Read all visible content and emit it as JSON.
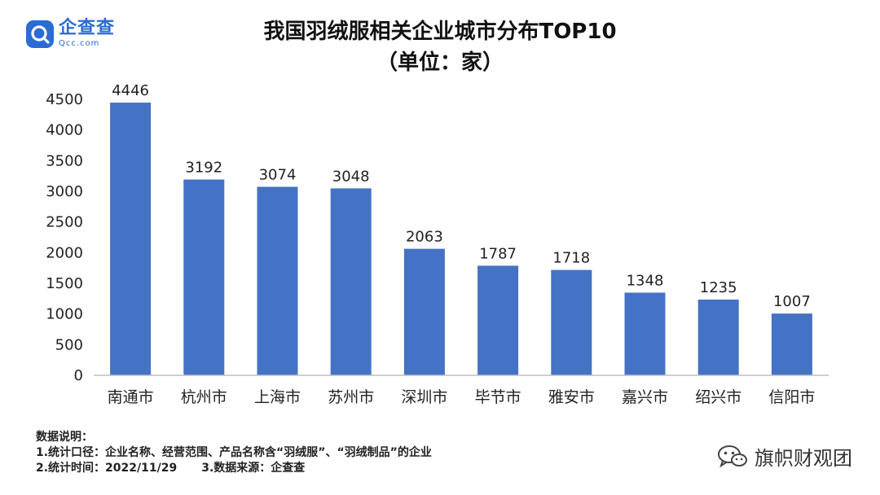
{
  "logo": {
    "cn": "企查查",
    "en": "Qcc.com",
    "icon": "qcc-logo-icon"
  },
  "chart_data": {
    "type": "bar",
    "title": "我国羽绒服相关企业城市分布TOP10",
    "subtitle": "（单位：家）",
    "categories": [
      "南通市",
      "杭州市",
      "上海市",
      "苏州市",
      "深圳市",
      "毕节市",
      "雅安市",
      "嘉兴市",
      "绍兴市",
      "信阳市"
    ],
    "values": [
      4446,
      3192,
      3074,
      3048,
      2063,
      1787,
      1718,
      1348,
      1235,
      1007
    ],
    "ylim": [
      0,
      4500
    ],
    "yticks": [
      0,
      500,
      1000,
      1500,
      2000,
      2500,
      3000,
      3500,
      4000,
      4500
    ],
    "grid": false,
    "legend": "none",
    "bar_color": "#4472c4",
    "data_labels": true
  },
  "notes": {
    "heading": "数据说明：",
    "line1": "1.统计口径：企业名称、经营范围、产品名称含“羽绒服”、“羽绒制品”的企业",
    "line2a": "2.统计时间：2022/11/29",
    "line2b": "3.数据来源：企查查"
  },
  "watermark": {
    "text": "旗帜财观团",
    "icon": "wechat-icon"
  }
}
